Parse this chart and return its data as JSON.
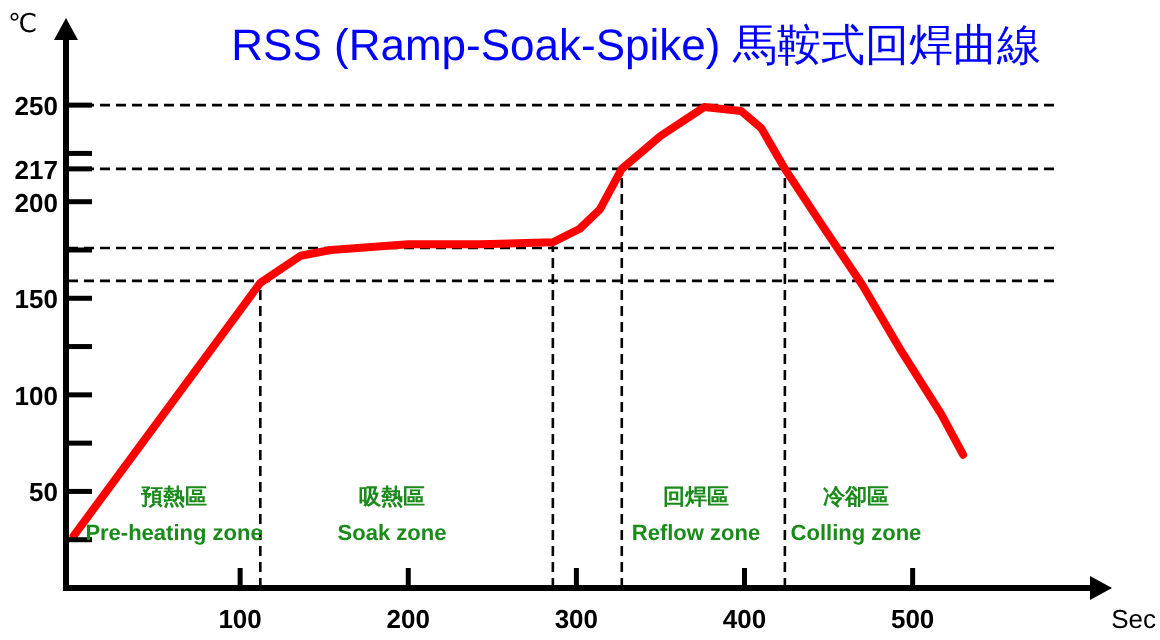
{
  "chart_data": {
    "type": "line",
    "title": "RSS (Ramp-Soak-Spike) 馬鞍式回焊曲線",
    "xlabel": "Sec",
    "ylabel": "℃",
    "xlim": [
      0,
      615
    ],
    "ylim": [
      0,
      292
    ],
    "xticks": [
      100,
      200,
      300,
      400,
      500
    ],
    "yticks": [
      {
        "value": 25,
        "label": null
      },
      50,
      {
        "value": 75,
        "label": null
      },
      100,
      {
        "value": 125,
        "label": null
      },
      150,
      {
        "value": 175,
        "label": null
      },
      200,
      217,
      {
        "value": 225,
        "label": null
      },
      250
    ],
    "marker": "none",
    "line_style": "solid",
    "series": [
      {
        "color": "#ff0000",
        "x": [
          1,
          112,
          136,
          154,
          200,
          243,
          286,
          302,
          314,
          327,
          350,
          376,
          398,
          410,
          424,
          446,
          470,
          493,
          517,
          530
        ],
        "values": [
          27,
          158,
          172,
          175,
          178,
          178,
          179,
          186,
          196,
          217,
          234,
          249,
          247,
          238,
          217,
          188,
          157,
          123,
          90,
          69
        ]
      }
    ],
    "ref_lines": [
      {
        "axis": "y",
        "value": 250,
        "label": null,
        "line_style": "dashed",
        "color": "#000000"
      },
      {
        "axis": "y",
        "value": 217,
        "label": null,
        "line_style": "dashed",
        "color": "#000000"
      },
      {
        "axis": "y",
        "value": 176,
        "label": null,
        "line_style": "dashed",
        "color": "#000000"
      },
      {
        "axis": "y",
        "value": 159,
        "label": null,
        "line_style": "dashed",
        "color": "#000000"
      },
      {
        "axis": "x",
        "value": 112,
        "label": null,
        "line_style": "dashed",
        "color": "#000000"
      },
      {
        "axis": "x",
        "value": 286,
        "label": null,
        "line_style": "dashed",
        "color": "#000000"
      },
      {
        "axis": "x",
        "value": 327,
        "label": null,
        "line_style": "dashed",
        "color": "#000000"
      },
      {
        "axis": "x",
        "value": 424,
        "label": null,
        "line_style": "dashed",
        "color": "#000000"
      }
    ],
    "annotations": [
      "預熱區\nPre-heating zone",
      "吸熱區\nSoak zone",
      "回焊區\nReflow zone",
      "冷卻區\nColling zone"
    ]
  }
}
